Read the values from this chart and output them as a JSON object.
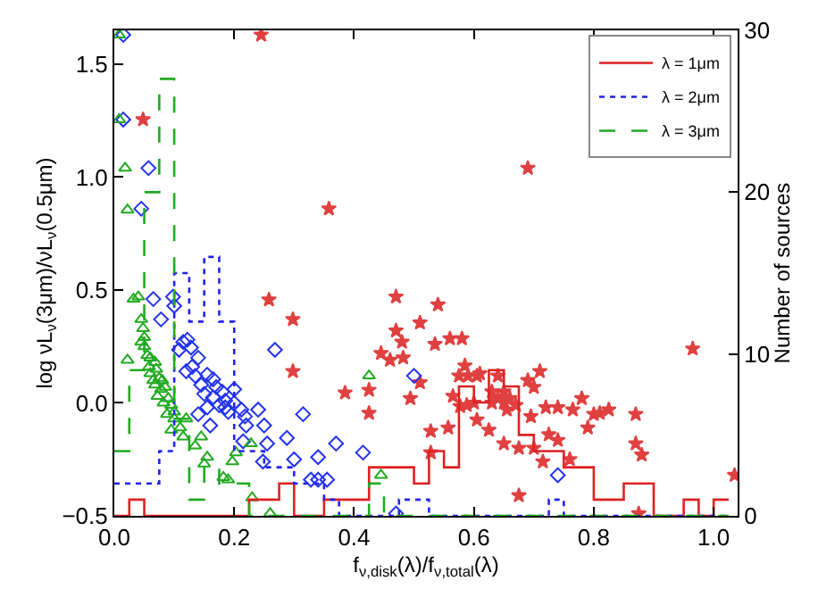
{
  "chart_data": {
    "type": "scatter",
    "xlabel": "f$_{ν,disk}$(λ)/f$_{ν,total}$(λ)",
    "ylabel": "log νL$_{ν}$(3μm)/νL$_{ν}$(0.5μm)",
    "y2label": "Number of sources",
    "xlim": [
      0,
      1.04
    ],
    "xticks": [
      {
        "value": 0,
        "label": "0.0"
      },
      {
        "value": 0.2,
        "label": "0.2"
      },
      {
        "value": 0.4,
        "label": "0.4"
      },
      {
        "value": 0.6,
        "label": "0.6"
      },
      {
        "value": 0.8,
        "label": "0.8"
      },
      {
        "value": 1.0,
        "label": "1.0"
      }
    ],
    "ylim": [
      -0.5,
      1.65
    ],
    "yticks": [
      {
        "value": -0.5,
        "label": "−0.5"
      },
      {
        "value": 0,
        "label": "0.0"
      },
      {
        "value": 0.5,
        "label": "0.5"
      },
      {
        "value": 1.0,
        "label": "1.0"
      },
      {
        "value": 1.5,
        "label": "1.5"
      }
    ],
    "y2lim": [
      0,
      30
    ],
    "y2ticks": [
      0,
      10,
      20,
      30
    ],
    "legend": "top right",
    "bins": [
      0,
      0.025,
      0.05,
      0.075,
      0.1,
      0.125,
      0.15,
      0.175,
      0.2,
      0.225,
      0.25,
      0.275,
      0.3,
      0.325,
      0.35,
      0.375,
      0.4,
      0.425,
      0.45,
      0.475,
      0.5,
      0.525,
      0.55,
      0.575,
      0.6,
      0.625,
      0.65,
      0.675,
      0.7,
      0.725,
      0.75,
      0.775,
      0.8,
      0.825,
      0.85,
      0.875,
      0.9,
      0.925,
      0.95,
      0.975,
      1.0,
      1.025
    ],
    "series": [
      {
        "marker": "star",
        "color": "#e04040",
        "x": [
          0.048,
          0.245,
          0.358,
          0.258,
          0.47,
          0.69,
          0.54,
          0.298,
          0.298,
          0.385,
          0.425,
          0.425,
          0.47,
          0.48,
          0.445,
          0.46,
          0.494,
          0.51,
          0.482,
          0.56,
          0.58,
          0.535,
          0.51,
          0.585,
          0.575,
          0.59,
          0.605,
          0.61,
          0.565,
          0.577,
          0.588,
          0.6,
          0.605,
          0.625,
          0.557,
          0.528,
          0.528,
          0.63,
          0.63,
          0.64,
          0.65,
          0.65,
          0.655,
          0.66,
          0.64,
          0.67,
          0.71,
          0.69,
          0.7,
          0.695,
          0.675,
          0.65,
          0.7,
          0.715,
          0.725,
          0.74,
          0.74,
          0.72,
          0.76,
          0.78,
          0.765,
          0.8,
          0.81,
          0.825,
          0.79,
          0.87,
          0.87,
          0.88,
          0.675,
          0.875,
          0.965,
          1.035
        ],
        "values": [
          1.255,
          1.63,
          0.86,
          0.457,
          0.47,
          1.04,
          0.435,
          0.37,
          0.14,
          0.045,
          0.057,
          -0.045,
          0.32,
          0.27,
          0.22,
          0.19,
          0.02,
          0.355,
          0.2,
          0.285,
          0.285,
          0.26,
          0.09,
          0.165,
          0.12,
          0.12,
          0.12,
          0.13,
          0.03,
          -0.015,
          -0.01,
          0.0,
          -0.075,
          -0.12,
          -0.11,
          -0.125,
          -0.22,
          0.05,
          0.0,
          0.02,
          0.0,
          0.05,
          -0.03,
          0.02,
          0.12,
          -0.01,
          0.14,
          0.1,
          0.07,
          -0.06,
          -0.2,
          -0.18,
          -0.2,
          -0.26,
          -0.14,
          -0.165,
          -0.02,
          -0.02,
          -0.25,
          0.02,
          -0.03,
          -0.05,
          -0.045,
          -0.03,
          -0.11,
          -0.05,
          -0.18,
          -0.23,
          -0.41,
          -0.49,
          0.24,
          -0.32
        ]
      },
      {
        "marker": "diamond",
        "color": "#2233ee",
        "x": [
          0.015,
          0.015,
          0.057,
          0.045,
          0.065,
          0.098,
          0.1,
          0.078,
          0.108,
          0.115,
          0.122,
          0.128,
          0.268,
          0.14,
          0.13,
          0.12,
          0.135,
          0.145,
          0.155,
          0.165,
          0.15,
          0.165,
          0.17,
          0.18,
          0.175,
          0.185,
          0.185,
          0.19,
          0.2,
          0.2,
          0.212,
          0.218,
          0.22,
          0.215,
          0.24,
          0.25,
          0.255,
          0.288,
          0.315,
          0.248,
          0.3,
          0.34,
          0.34,
          0.328,
          0.355,
          0.37,
          0.415,
          0.5,
          0.47,
          0.74,
          0.155,
          0.14,
          0.16
        ],
        "values": [
          1.63,
          1.255,
          1.04,
          0.86,
          0.46,
          0.47,
          0.43,
          0.37,
          0.235,
          0.27,
          0.28,
          0.245,
          0.235,
          0.2,
          0.16,
          0.14,
          0.12,
          0.08,
          0.125,
          0.105,
          0.04,
          0.025,
          0.07,
          0.05,
          -0.01,
          0.01,
          -0.02,
          -0.04,
          0.0,
          0.06,
          -0.03,
          -0.06,
          -0.1,
          -0.17,
          -0.03,
          -0.1,
          -0.18,
          -0.155,
          -0.05,
          -0.26,
          -0.25,
          -0.24,
          -0.34,
          -0.34,
          -0.34,
          -0.18,
          -0.22,
          0.12,
          -0.49,
          -0.32,
          -0.02,
          -0.05,
          -0.1
        ]
      },
      {
        "marker": "triangle",
        "color": "#22aa22",
        "x": [
          0.008,
          0.008,
          0.018,
          0.022,
          0.032,
          0.04,
          0.045,
          0.048,
          0.05,
          0.045,
          0.022,
          0.055,
          0.058,
          0.06,
          0.068,
          0.075,
          0.068,
          0.078,
          0.085,
          0.072,
          0.09,
          0.082,
          0.095,
          0.1,
          0.088,
          0.1,
          0.095,
          0.11,
          0.12,
          0.115,
          0.135,
          0.145,
          0.15,
          0.155,
          0.182,
          0.19,
          0.197,
          0.203,
          0.228,
          0.23,
          0.26,
          0.425,
          0.445,
          0.05,
          0.06,
          0.07,
          0.065,
          0.08
        ],
        "values": [
          1.63,
          1.255,
          1.04,
          0.855,
          0.46,
          0.47,
          0.37,
          0.33,
          0.29,
          0.27,
          0.19,
          0.21,
          0.16,
          0.13,
          0.18,
          0.11,
          0.08,
          0.06,
          0.07,
          0.03,
          0.02,
          0.0,
          -0.01,
          -0.04,
          -0.05,
          -0.07,
          -0.12,
          -0.11,
          -0.07,
          -0.15,
          -0.19,
          -0.15,
          -0.27,
          -0.24,
          -0.33,
          -0.34,
          -0.26,
          -0.22,
          -0.18,
          -0.42,
          -0.49,
          0.12,
          -0.32,
          0.25,
          0.2,
          0.15,
          0.1,
          0.1
        ]
      },
      {
        "type": "histogram",
        "axis": "y2",
        "name": "λ = 1μm",
        "color": "#dd2222",
        "line_style": "solid",
        "values": [
          0,
          1,
          0,
          0,
          0,
          0,
          0,
          0,
          0,
          1,
          1,
          2,
          0,
          0,
          1,
          1,
          1,
          3,
          3,
          3,
          2,
          4,
          3,
          8,
          7,
          9,
          8,
          5,
          4,
          4,
          3,
          3,
          1,
          1,
          2,
          2,
          0,
          0,
          1,
          0,
          1
        ]
      },
      {
        "type": "histogram",
        "axis": "y2",
        "name": "λ = 2μm",
        "color": "#2222ee",
        "line_style": "dotted",
        "values": [
          2,
          2,
          2,
          4,
          15,
          12,
          16,
          12,
          4,
          4,
          3,
          3,
          2,
          2,
          1,
          0,
          0,
          0,
          0,
          1,
          1,
          0,
          0,
          0,
          0,
          0,
          0,
          0,
          0,
          1,
          0,
          0,
          0,
          0,
          0,
          0,
          0,
          0,
          0,
          0,
          0
        ]
      },
      {
        "type": "histogram",
        "axis": "y2",
        "name": "λ = 3μm",
        "color": "#22aa22",
        "line_style": "dashed",
        "values": [
          4,
          9,
          20,
          27,
          6,
          1,
          3,
          2,
          2,
          0,
          0,
          0,
          0,
          0,
          0,
          0,
          0,
          2,
          0,
          0,
          0,
          0,
          0,
          0,
          0,
          0,
          0,
          0,
          0,
          0,
          0,
          0,
          0,
          0,
          0,
          0,
          0,
          0,
          0,
          0,
          0
        ]
      }
    ]
  }
}
